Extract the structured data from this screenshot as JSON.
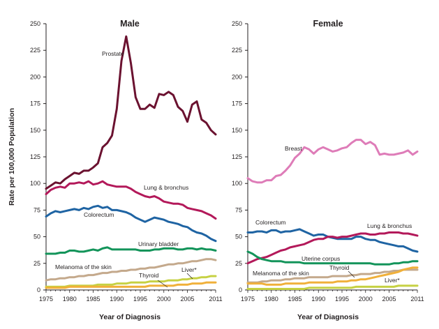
{
  "chart_data": [
    {
      "type": "line",
      "title": "Male",
      "xlabel": "Year of Diagnosis",
      "ylabel": "Rate per 100,000 Population",
      "xlim": [
        1975,
        2011
      ],
      "ylim": [
        0,
        250
      ],
      "xticks": [
        1975,
        1980,
        1985,
        1990,
        1995,
        2000,
        2005,
        2011
      ],
      "yticks": [
        0,
        25,
        50,
        75,
        100,
        125,
        150,
        175,
        200,
        225,
        250
      ],
      "grid": false,
      "legend": "inline labels",
      "x": [
        1975,
        1976,
        1977,
        1978,
        1979,
        1980,
        1981,
        1982,
        1983,
        1984,
        1985,
        1986,
        1987,
        1988,
        1989,
        1990,
        1991,
        1992,
        1993,
        1994,
        1995,
        1996,
        1997,
        1998,
        1999,
        2000,
        2001,
        2002,
        2003,
        2004,
        2005,
        2006,
        2007,
        2008,
        2009,
        2010,
        2011
      ],
      "series": [
        {
          "name": "Prostate",
          "color": "#6b1230",
          "values": [
            95,
            98,
            101,
            100,
            104,
            107,
            110,
            109,
            112,
            112,
            115,
            119,
            134,
            138,
            145,
            170,
            215,
            238,
            213,
            181,
            170,
            170,
            174,
            171,
            184,
            183,
            186,
            183,
            172,
            168,
            158,
            174,
            177,
            160,
            157,
            150,
            146
          ]
        },
        {
          "name": "Lung & bronchus",
          "color": "#b3195a",
          "values": [
            90,
            94,
            96,
            97,
            96,
            100,
            100,
            101,
            100,
            102,
            99,
            100,
            102,
            99,
            98,
            97,
            97,
            97,
            95,
            92,
            90,
            88,
            87,
            88,
            86,
            83,
            82,
            81,
            81,
            80,
            77,
            76,
            75,
            74,
            72,
            70,
            67
          ]
        },
        {
          "name": "Colorectum",
          "color": "#1f64a3",
          "values": [
            69,
            72,
            74,
            73,
            74,
            75,
            76,
            75,
            77,
            76,
            78,
            79,
            77,
            78,
            75,
            75,
            74,
            73,
            71,
            68,
            66,
            64,
            66,
            68,
            67,
            66,
            64,
            63,
            62,
            60,
            59,
            56,
            54,
            53,
            51,
            48,
            46
          ]
        },
        {
          "name": "Urinary bladder",
          "color": "#13945a",
          "values": [
            34,
            34,
            34,
            35,
            35,
            37,
            37,
            36,
            36,
            37,
            38,
            37,
            39,
            40,
            38,
            38,
            38,
            38,
            38,
            38,
            37,
            37,
            37,
            38,
            38,
            39,
            39,
            39,
            38,
            38,
            39,
            39,
            38,
            39,
            38,
            38,
            37
          ]
        },
        {
          "name": "Melanoma of the skin",
          "color": "#c4a98c",
          "values": [
            9,
            10,
            10,
            11,
            11,
            12,
            12,
            13,
            13,
            14,
            14,
            15,
            16,
            16,
            17,
            17,
            18,
            18,
            19,
            19,
            20,
            20,
            21,
            21,
            22,
            23,
            24,
            24,
            25,
            25,
            26,
            27,
            27,
            28,
            29,
            29,
            28
          ]
        },
        {
          "name": "Liver*",
          "color": "#c6d143",
          "values": [
            3,
            3,
            3,
            3,
            3,
            4,
            4,
            4,
            4,
            4,
            4,
            5,
            5,
            5,
            5,
            6,
            6,
            6,
            7,
            7,
            7,
            7,
            8,
            8,
            8,
            8,
            9,
            9,
            9,
            10,
            10,
            11,
            11,
            12,
            12,
            13,
            13
          ]
        },
        {
          "name": "Thyroid",
          "color": "#f0b03a",
          "values": [
            2,
            2,
            2,
            2,
            2,
            3,
            3,
            3,
            3,
            3,
            3,
            3,
            3,
            3,
            3,
            3,
            3,
            3,
            3,
            3,
            3,
            3,
            4,
            4,
            4,
            4,
            4,
            4,
            5,
            5,
            5,
            6,
            6,
            6,
            7,
            7,
            7
          ]
        }
      ],
      "annotations": {
        "Prostate": "Prostate",
        "Lung & bronchus": "Lung & bronchus",
        "Colorectum": "Colorectum",
        "Urinary bladder": "Urinary bladder",
        "Melanoma of the skin": "Melanoma of the skin",
        "Liver*": "Liver*",
        "Thyroid": "Thyroid"
      }
    },
    {
      "type": "line",
      "title": "Female",
      "xlabel": "Year of Diagnosis",
      "ylabel": "",
      "xlim": [
        1975,
        2011
      ],
      "ylim": [
        0,
        250
      ],
      "xticks": [
        1975,
        1980,
        1985,
        1990,
        1995,
        2000,
        2005,
        2011
      ],
      "yticks": [
        0,
        25,
        50,
        75,
        100,
        125,
        150,
        175,
        200,
        225,
        250
      ],
      "grid": false,
      "legend": "inline labels",
      "x": [
        1975,
        1976,
        1977,
        1978,
        1979,
        1980,
        1981,
        1982,
        1983,
        1984,
        1985,
        1986,
        1987,
        1988,
        1989,
        1990,
        1991,
        1992,
        1993,
        1994,
        1995,
        1996,
        1997,
        1998,
        1999,
        2000,
        2001,
        2002,
        2003,
        2004,
        2005,
        2006,
        2007,
        2008,
        2009,
        2010,
        2011
      ],
      "series": [
        {
          "name": "Breast",
          "color": "#de7cb8",
          "values": [
            105,
            102,
            101,
            101,
            103,
            103,
            107,
            108,
            112,
            117,
            124,
            128,
            134,
            132,
            128,
            132,
            134,
            132,
            130,
            131,
            133,
            134,
            138,
            141,
            141,
            137,
            139,
            136,
            127,
            128,
            127,
            127,
            128,
            129,
            131,
            127,
            130
          ]
        },
        {
          "name": "Colorectum",
          "color": "#1f64a3",
          "values": [
            54,
            54,
            55,
            55,
            54,
            56,
            56,
            54,
            55,
            55,
            56,
            57,
            55,
            53,
            51,
            52,
            52,
            50,
            49,
            48,
            48,
            48,
            48,
            50,
            50,
            48,
            47,
            47,
            45,
            44,
            43,
            42,
            41,
            41,
            39,
            37,
            36
          ]
        },
        {
          "name": "Lung & bronchus",
          "color": "#b3195a",
          "values": [
            25,
            27,
            29,
            30,
            31,
            33,
            35,
            37,
            38,
            40,
            41,
            42,
            43,
            45,
            47,
            48,
            48,
            50,
            50,
            49,
            50,
            50,
            51,
            52,
            53,
            53,
            52,
            52,
            53,
            53,
            54,
            54,
            54,
            53,
            53,
            52,
            51
          ]
        },
        {
          "name": "Uterine corpus",
          "color": "#13945a",
          "values": [
            36,
            34,
            31,
            29,
            28,
            27,
            27,
            27,
            26,
            26,
            26,
            26,
            25,
            25,
            25,
            25,
            25,
            25,
            25,
            25,
            25,
            25,
            25,
            25,
            25,
            25,
            25,
            24,
            24,
            24,
            24,
            25,
            25,
            26,
            26,
            27,
            27
          ]
        },
        {
          "name": "Melanoma of the skin",
          "color": "#c4a98c",
          "values": [
            7,
            7,
            7,
            8,
            8,
            9,
            9,
            9,
            10,
            10,
            11,
            11,
            11,
            12,
            12,
            12,
            12,
            12,
            13,
            13,
            13,
            13,
            14,
            14,
            15,
            15,
            15,
            16,
            16,
            17,
            17,
            18,
            18,
            19,
            19,
            19,
            19
          ]
        },
        {
          "name": "Thyroid",
          "color": "#f0b03a",
          "values": [
            6,
            6,
            6,
            6,
            5,
            5,
            5,
            5,
            6,
            6,
            6,
            6,
            6,
            7,
            7,
            7,
            7,
            7,
            7,
            8,
            8,
            8,
            9,
            9,
            10,
            10,
            11,
            12,
            13,
            14,
            15,
            16,
            17,
            19,
            20,
            21,
            21
          ]
        },
        {
          "name": "Liver*",
          "color": "#c6d143",
          "values": [
            1,
            1,
            1,
            1,
            1,
            1,
            1,
            1,
            1,
            1,
            1,
            1,
            1,
            2,
            2,
            2,
            2,
            2,
            2,
            2,
            2,
            2,
            2,
            3,
            3,
            3,
            3,
            3,
            3,
            3,
            3,
            3,
            4,
            4,
            4,
            4,
            4
          ]
        }
      ],
      "annotations": {
        "Breast": "Breast",
        "Colorectum": "Colorectum",
        "Lung & bronchus": "Lung & bronchus",
        "Uterine corpus": "Uterine corpus",
        "Melanoma of the skin": "Melanoma of the skin",
        "Thyroid": "Thyroid",
        "Liver*": "Liver*"
      }
    }
  ]
}
